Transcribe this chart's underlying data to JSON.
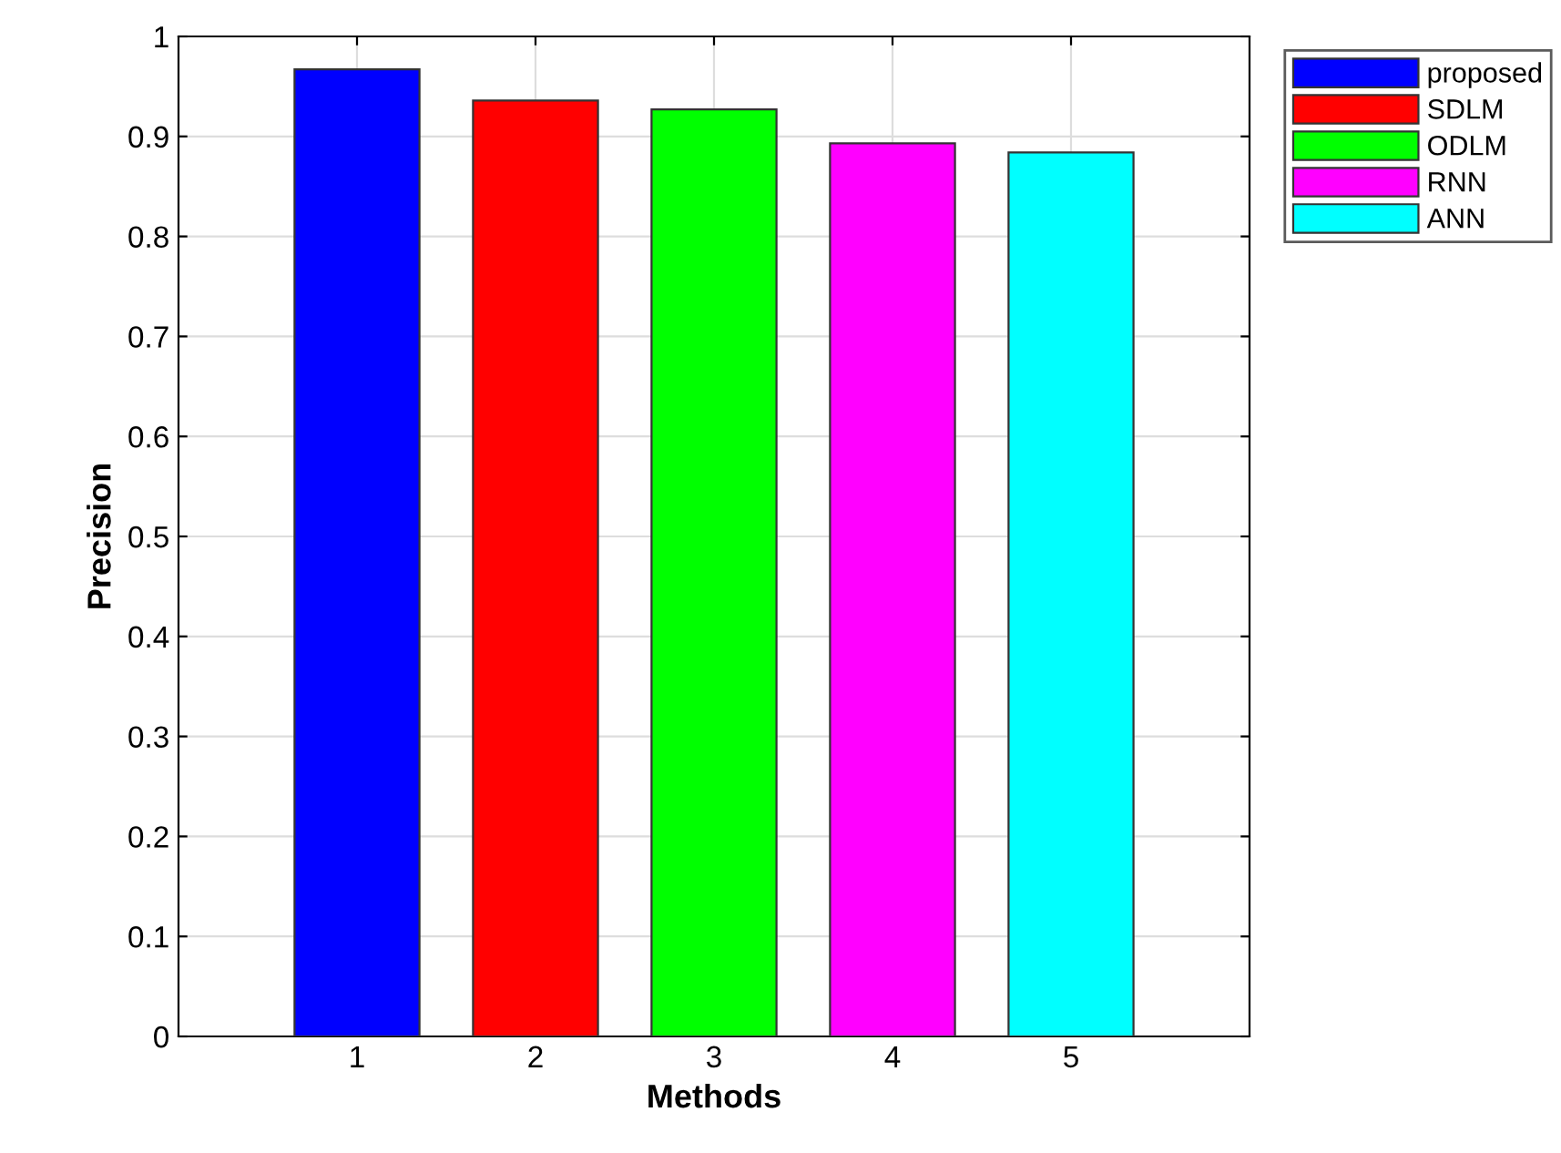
{
  "chart_data": {
    "type": "bar",
    "xlabel": "Methods",
    "ylabel": "Precision",
    "xlim": [
      0,
      6
    ],
    "xticks": [
      1,
      2,
      3,
      4,
      5
    ],
    "ylim": [
      0,
      1
    ],
    "yticks": [
      0,
      0.1,
      0.2,
      0.3,
      0.4,
      0.5,
      0.6,
      0.7,
      0.8,
      0.9,
      1
    ],
    "grid": true,
    "legend": "top right",
    "series": [
      {
        "name": "proposed",
        "color": "#0000ff",
        "x": [
          1
        ],
        "values": [
          0.967
        ]
      },
      {
        "name": "SDLM",
        "color": "#ff0000",
        "x": [
          2
        ],
        "values": [
          0.936
        ]
      },
      {
        "name": "ODLM",
        "color": "#00ff00",
        "x": [
          3
        ],
        "values": [
          0.927
        ]
      },
      {
        "name": "RNN",
        "color": "#ff00ff",
        "x": [
          4
        ],
        "values": [
          0.893
        ]
      },
      {
        "name": "ANN",
        "color": "#00ffff",
        "x": [
          5
        ],
        "values": [
          0.884
        ]
      }
    ]
  }
}
